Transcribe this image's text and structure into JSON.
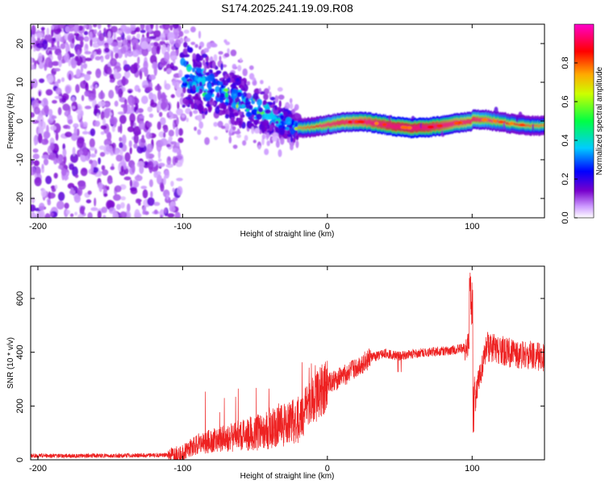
{
  "title": "S174.2025.241.19.09.R08",
  "colors": {
    "snr_line": "#ee2222",
    "axis": "#000000"
  },
  "chart_data": [
    {
      "type": "heatmap",
      "xlabel": "Height of straight line (km)",
      "ylabel": "Frequency (Hz)",
      "xlim": [
        -205,
        150
      ],
      "ylim": [
        -25,
        25
      ],
      "xticks": [
        -200,
        -100,
        0,
        100
      ],
      "xtick_labels": [
        "-200",
        "-100",
        "0",
        "100"
      ],
      "yticks": [
        -20,
        -10,
        0,
        10,
        20
      ],
      "ytick_labels": [
        "-20",
        "-10",
        "0",
        "10",
        "20"
      ],
      "colorbar": {
        "label": "Normalized spectral amplitude",
        "range": [
          0,
          1
        ],
        "ticks": [
          0.0,
          0.2,
          0.4,
          0.6,
          0.8
        ],
        "tick_labels": [
          "0.0",
          "0.2",
          "0.4",
          "0.6",
          "0.8"
        ],
        "colormap": "rainbow (white-violet-blue-cyan-green-yellow-red-magenta)"
      },
      "features": [
        {
          "x_range": [
            -205,
            -100
          ],
          "freq_spread": 25,
          "amplitude": 0.15,
          "description": "diffuse noise"
        },
        {
          "x_range": [
            -100,
            -20
          ],
          "freq_center_from": 12,
          "freq_center_to": -2,
          "amplitude": 0.35
        },
        {
          "x_range": [
            -20,
            150
          ],
          "freq_center": -1,
          "amplitude": 0.85,
          "description": "narrow carrier line"
        }
      ]
    },
    {
      "type": "line",
      "xlabel": "Height of straight line (km)",
      "ylabel": "SNR (10 * v/v)",
      "xlim": [
        -205,
        150
      ],
      "ylim": [
        0,
        720
      ],
      "xticks": [
        -200,
        -100,
        0,
        100
      ],
      "xtick_labels": [
        "-200",
        "-100",
        "0",
        "100"
      ],
      "yticks": [
        0,
        200,
        400,
        600
      ],
      "ytick_labels": [
        "0",
        "200",
        "400",
        "600"
      ],
      "series": [
        {
          "name": "SNR",
          "x": [
            -205,
            -150,
            -110,
            -100,
            -90,
            -80,
            -60,
            -40,
            -20,
            -10,
            0,
            10,
            20,
            30,
            40,
            50,
            60,
            70,
            80,
            90,
            98,
            100,
            102,
            110,
            120,
            130,
            140,
            150
          ],
          "y": [
            15,
            15,
            18,
            25,
            60,
            70,
            90,
            110,
            150,
            220,
            280,
            310,
            340,
            380,
            395,
            385,
            395,
            400,
            405,
            410,
            420,
            600,
            230,
            420,
            410,
            390,
            390,
            380
          ]
        }
      ]
    }
  ]
}
